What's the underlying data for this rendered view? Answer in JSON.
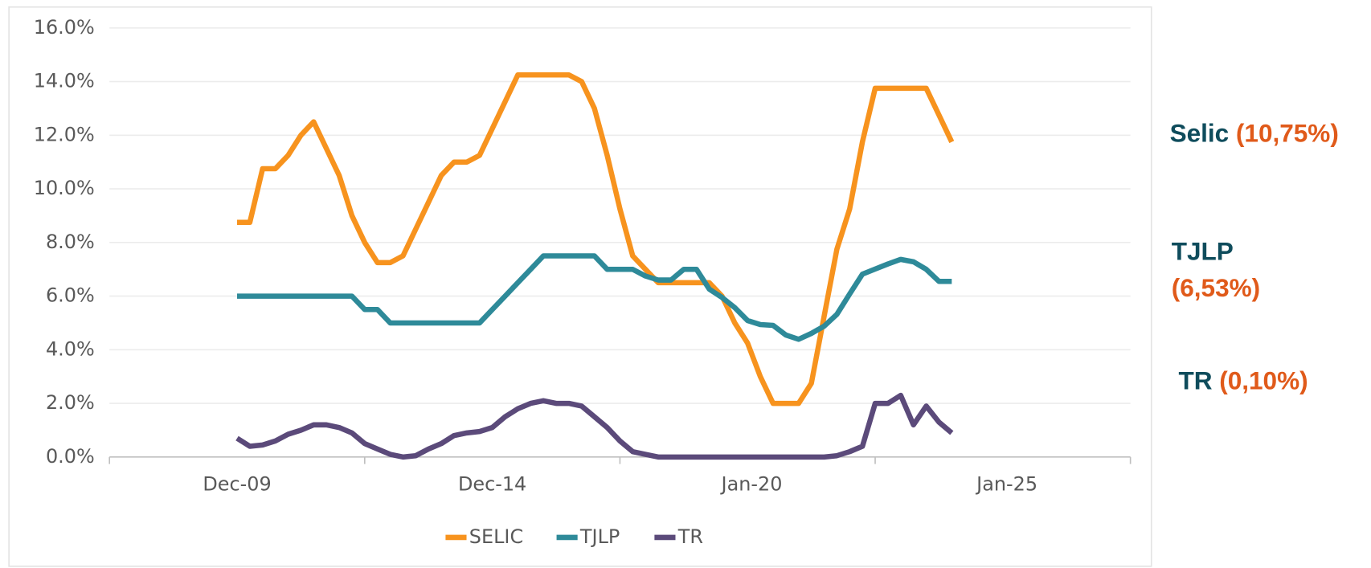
{
  "chart_data": {
    "type": "line",
    "x": [
      "2009-12",
      "2010-03",
      "2010-06",
      "2010-09",
      "2010-12",
      "2011-03",
      "2011-06",
      "2011-09",
      "2011-12",
      "2012-03",
      "2012-06",
      "2012-09",
      "2012-12",
      "2013-03",
      "2013-06",
      "2013-09",
      "2013-12",
      "2014-03",
      "2014-06",
      "2014-09",
      "2014-12",
      "2015-03",
      "2015-06",
      "2015-09",
      "2015-12",
      "2016-03",
      "2016-06",
      "2016-09",
      "2016-12",
      "2017-03",
      "2017-06",
      "2017-09",
      "2017-12",
      "2018-03",
      "2018-06",
      "2018-09",
      "2018-12",
      "2019-03",
      "2019-06",
      "2019-09",
      "2019-12",
      "2020-03",
      "2020-06",
      "2020-09",
      "2020-12",
      "2021-03",
      "2021-06",
      "2021-09",
      "2021-12",
      "2022-03",
      "2022-06",
      "2022-09",
      "2022-12",
      "2023-03",
      "2023-06",
      "2023-09",
      "2023-12"
    ],
    "series": [
      {
        "name": "SELIC",
        "color": "#f7931e",
        "values": [
          8.75,
          8.75,
          10.75,
          10.75,
          11.25,
          12,
          12.5,
          11.5,
          10.5,
          9,
          8,
          7.25,
          7.25,
          7.5,
          8.5,
          9.5,
          10.5,
          11,
          11,
          11.25,
          12.25,
          13.25,
          14.25,
          14.25,
          14.25,
          14.25,
          14.25,
          14,
          13,
          11.25,
          9.25,
          7.5,
          7,
          6.5,
          6.5,
          6.5,
          6.5,
          6.5,
          6,
          5,
          4.25,
          3,
          2,
          2,
          2,
          2.75,
          5.25,
          7.75,
          9.25,
          11.75,
          13.75,
          13.75,
          13.75,
          13.75,
          13.75,
          12.75,
          11.75
        ]
      },
      {
        "name": "TJLP",
        "color": "#2e8a99",
        "values": [
          6,
          6,
          6,
          6,
          6,
          6,
          6,
          6,
          6,
          6,
          5.5,
          5.5,
          5,
          5,
          5,
          5,
          5,
          5,
          5,
          5,
          5.5,
          6,
          6.5,
          7,
          7.5,
          7.5,
          7.5,
          7.5,
          7.5,
          7,
          7,
          7,
          6.75,
          6.6,
          6.6,
          7,
          7,
          6.26,
          5.95,
          5.57,
          5.09,
          4.94,
          4.91,
          4.55,
          4.39,
          4.61,
          4.88,
          5.32,
          6.08,
          6.82,
          7.01,
          7.2,
          7.37,
          7.28,
          7,
          6.55,
          6.55
        ]
      },
      {
        "name": "TR",
        "color": "#5b4a7a",
        "values": [
          0.7,
          0.4,
          0.45,
          0.6,
          0.85,
          1,
          1.2,
          1.2,
          1.1,
          0.9,
          0.5,
          0.3,
          0.1,
          0,
          0.05,
          0.3,
          0.5,
          0.8,
          0.9,
          0.95,
          1.1,
          1.5,
          1.8,
          2,
          2.1,
          2,
          2,
          1.9,
          1.5,
          1.1,
          0.6,
          0.2,
          0.1,
          0,
          0,
          0,
          0,
          0,
          0,
          0,
          0,
          0,
          0,
          0,
          0,
          0,
          0,
          0.05,
          0.2,
          0.4,
          2,
          2,
          2.3,
          1.2,
          1.9,
          1.3,
          0.9
        ]
      }
    ],
    "xlim": [
      "2007-06",
      "2027-06"
    ],
    "xticks": [
      {
        "value": "2009-12",
        "label": "Dec-09"
      },
      {
        "value": "2014-12",
        "label": "Dec-14"
      },
      {
        "value": "2020-01",
        "label": "Jan-20"
      },
      {
        "value": "2025-01",
        "label": "Jan-25"
      }
    ],
    "xminorticks": [
      "2007-06",
      "2012-06",
      "2017-06",
      "2022-06",
      "2027-06"
    ],
    "ylim": [
      0,
      16
    ],
    "yticks": [
      {
        "value": 0,
        "label": "0.0%"
      },
      {
        "value": 2,
        "label": "2.0%"
      },
      {
        "value": 4,
        "label": "4.0%"
      },
      {
        "value": 6,
        "label": "6.0%"
      },
      {
        "value": 8,
        "label": "8.0%"
      },
      {
        "value": 10,
        "label": "10.0%"
      },
      {
        "value": 12,
        "label": "12.0%"
      },
      {
        "value": 14,
        "label": "14.0%"
      },
      {
        "value": 16,
        "label": "16.0%"
      }
    ],
    "grid": true,
    "legend": "bottom",
    "annotations": [
      {
        "name": "Selic",
        "value": "(10,75%)"
      },
      {
        "name": "TJLP",
        "value": "(6,53%)"
      },
      {
        "name": "TR",
        "value": "(0,10%)"
      }
    ],
    "annotation_colors": {
      "name": "#0f4c5c",
      "value": "#e05a1a"
    }
  }
}
